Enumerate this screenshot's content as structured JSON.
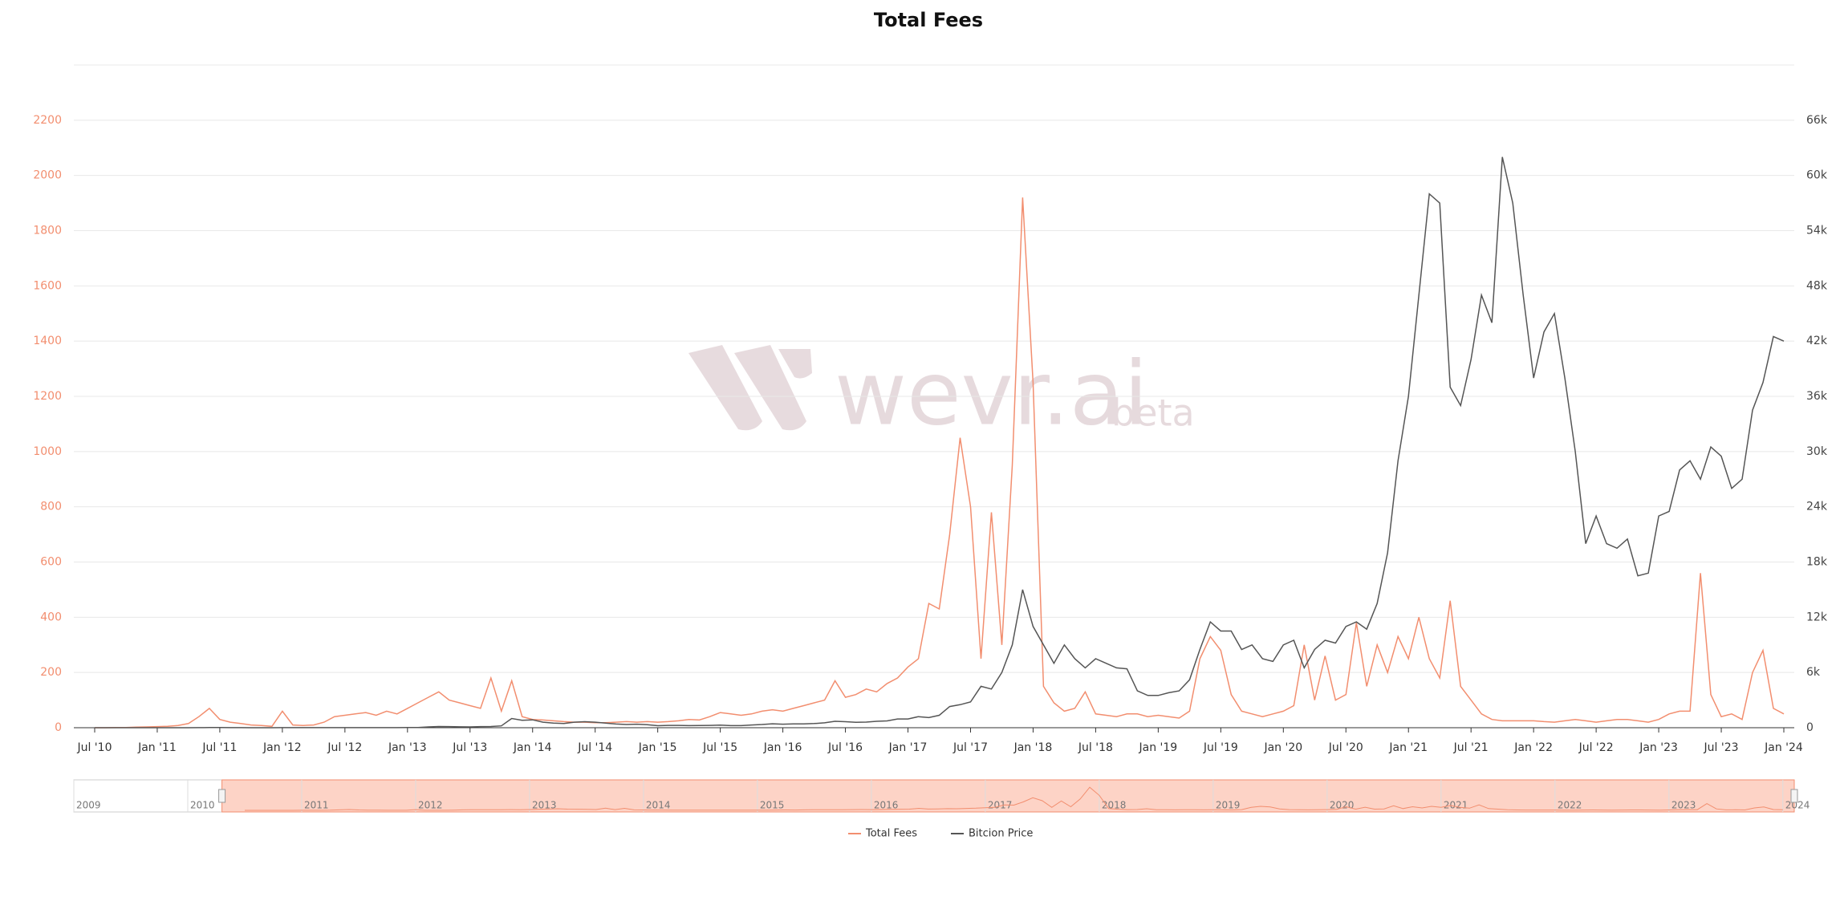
{
  "chart_data": {
    "type": "line",
    "title": "Total Fees",
    "x": [
      "2010-07",
      "2010-08",
      "2010-09",
      "2010-10",
      "2010-11",
      "2010-12",
      "2011-01",
      "2011-02",
      "2011-03",
      "2011-04",
      "2011-05",
      "2011-06",
      "2011-07",
      "2011-08",
      "2011-09",
      "2011-10",
      "2011-11",
      "2011-12",
      "2012-01",
      "2012-02",
      "2012-03",
      "2012-04",
      "2012-05",
      "2012-06",
      "2012-07",
      "2012-08",
      "2012-09",
      "2012-10",
      "2012-11",
      "2012-12",
      "2013-01",
      "2013-02",
      "2013-03",
      "2013-04",
      "2013-05",
      "2013-06",
      "2013-07",
      "2013-08",
      "2013-09",
      "2013-10",
      "2013-11",
      "2013-12",
      "2014-01",
      "2014-02",
      "2014-03",
      "2014-04",
      "2014-05",
      "2014-06",
      "2014-07",
      "2014-08",
      "2014-09",
      "2014-10",
      "2014-11",
      "2014-12",
      "2015-01",
      "2015-02",
      "2015-03",
      "2015-04",
      "2015-05",
      "2015-06",
      "2015-07",
      "2015-08",
      "2015-09",
      "2015-10",
      "2015-11",
      "2015-12",
      "2016-01",
      "2016-02",
      "2016-03",
      "2016-04",
      "2016-05",
      "2016-06",
      "2016-07",
      "2016-08",
      "2016-09",
      "2016-10",
      "2016-11",
      "2016-12",
      "2017-01",
      "2017-02",
      "2017-03",
      "2017-04",
      "2017-05",
      "2017-06",
      "2017-07",
      "2017-08",
      "2017-09",
      "2017-10",
      "2017-11",
      "2017-12",
      "2018-01",
      "2018-02",
      "2018-03",
      "2018-04",
      "2018-05",
      "2018-06",
      "2018-07",
      "2018-08",
      "2018-09",
      "2018-10",
      "2018-11",
      "2018-12",
      "2019-01",
      "2019-02",
      "2019-03",
      "2019-04",
      "2019-05",
      "2019-06",
      "2019-07",
      "2019-08",
      "2019-09",
      "2019-10",
      "2019-11",
      "2019-12",
      "2020-01",
      "2020-02",
      "2020-03",
      "2020-04",
      "2020-05",
      "2020-06",
      "2020-07",
      "2020-08",
      "2020-09",
      "2020-10",
      "2020-11",
      "2020-12",
      "2021-01",
      "2021-02",
      "2021-03",
      "2021-04",
      "2021-05",
      "2021-06",
      "2021-07",
      "2021-08",
      "2021-09",
      "2021-10",
      "2021-11",
      "2021-12",
      "2022-01",
      "2022-02",
      "2022-03",
      "2022-04",
      "2022-05",
      "2022-06",
      "2022-07",
      "2022-08",
      "2022-09",
      "2022-10",
      "2022-11",
      "2022-12",
      "2023-01",
      "2023-02",
      "2023-03",
      "2023-04",
      "2023-05",
      "2023-06",
      "2023-07",
      "2023-08",
      "2023-09",
      "2023-10",
      "2023-11",
      "2023-12",
      "2024-01"
    ],
    "series": [
      {
        "name": "Total Fees",
        "color": "#f28e6f",
        "values": [
          0,
          0,
          1,
          1,
          2,
          3,
          4,
          5,
          8,
          15,
          40,
          70,
          30,
          20,
          15,
          10,
          8,
          5,
          60,
          10,
          8,
          10,
          20,
          40,
          45,
          50,
          55,
          45,
          60,
          50,
          70,
          90,
          110,
          130,
          100,
          90,
          80,
          70,
          180,
          60,
          170,
          40,
          30,
          28,
          25,
          22,
          20,
          20,
          18,
          18,
          20,
          22,
          20,
          22,
          20,
          22,
          25,
          30,
          28,
          40,
          55,
          50,
          45,
          50,
          60,
          65,
          60,
          70,
          80,
          90,
          100,
          170,
          110,
          120,
          140,
          130,
          160,
          180,
          220,
          250,
          450,
          430,
          700,
          1050,
          800,
          250,
          780,
          300,
          950,
          1920,
          1250,
          150,
          90,
          60,
          70,
          130,
          50,
          45,
          40,
          50,
          50,
          40,
          45,
          40,
          35,
          60,
          250,
          330,
          280,
          120,
          60,
          50,
          40,
          50,
          60,
          80,
          300,
          100,
          260,
          100,
          120,
          380,
          150,
          300,
          200,
          330,
          250,
          400,
          250,
          180,
          460,
          150,
          100,
          50,
          30,
          25,
          25,
          25,
          25,
          22,
          20,
          25,
          30,
          25,
          20,
          25,
          30,
          30,
          25,
          20,
          30,
          50,
          60,
          60,
          560,
          120,
          40,
          50,
          30,
          200,
          280,
          70,
          50
        ]
      },
      {
        "name": "Bitcion Price",
        "color": "#555555",
        "axis": "y2",
        "values": [
          0.07,
          0.06,
          0.06,
          0.1,
          0.2,
          0.25,
          0.4,
          0.9,
          0.8,
          1.5,
          7,
          17,
          14,
          10,
          5,
          3.5,
          2.5,
          3.5,
          6,
          5,
          5,
          5,
          5,
          6,
          9,
          10,
          12,
          11,
          11,
          13,
          20,
          30,
          90,
          130,
          120,
          100,
          90,
          120,
          130,
          200,
          1000,
          800,
          850,
          600,
          500,
          450,
          600,
          650,
          600,
          500,
          400,
          350,
          380,
          320,
          220,
          250,
          250,
          230,
          240,
          250,
          280,
          230,
          230,
          300,
          350,
          430,
          380,
          420,
          410,
          450,
          530,
          700,
          650,
          580,
          610,
          700,
          740,
          950,
          950,
          1200,
          1100,
          1350,
          2300,
          2500,
          2800,
          4500,
          4200,
          6000,
          9000,
          15000,
          11000,
          9000,
          7000,
          9000,
          7500,
          6500,
          7500,
          7000,
          6500,
          6400,
          4000,
          3500,
          3500,
          3800,
          4000,
          5200,
          8500,
          11500,
          10500,
          10500,
          8500,
          9000,
          7500,
          7200,
          9000,
          9500,
          6500,
          8500,
          9500,
          9200,
          11000,
          11500,
          10700,
          13500,
          19000,
          29000,
          36000,
          47000,
          58000,
          57000,
          37000,
          35000,
          40000,
          47000,
          44000,
          62000,
          57000,
          47000,
          38000,
          43000,
          45000,
          38000,
          30000,
          20000,
          23000,
          20000,
          19500,
          20500,
          16500,
          16800,
          23000,
          23500,
          28000,
          29000,
          27000,
          30500,
          29500,
          26000,
          27000,
          34500,
          37500,
          42500,
          42000
        ]
      }
    ],
    "xlim": [
      "2010-05",
      "2024-02"
    ],
    "xticks": [
      {
        "value": "2010-07",
        "label": "Jul '10"
      },
      {
        "value": "2011-01",
        "label": "Jan '11"
      },
      {
        "value": "2011-07",
        "label": "Jul '11"
      },
      {
        "value": "2012-01",
        "label": "Jan '12"
      },
      {
        "value": "2012-07",
        "label": "Jul '12"
      },
      {
        "value": "2013-01",
        "label": "Jan '13"
      },
      {
        "value": "2013-07",
        "label": "Jul '13"
      },
      {
        "value": "2014-01",
        "label": "Jan '14"
      },
      {
        "value": "2014-07",
        "label": "Jul '14"
      },
      {
        "value": "2015-01",
        "label": "Jan '15"
      },
      {
        "value": "2015-07",
        "label": "Jul '15"
      },
      {
        "value": "2016-01",
        "label": "Jan '16"
      },
      {
        "value": "2016-07",
        "label": "Jul '16"
      },
      {
        "value": "2017-01",
        "label": "Jan '17"
      },
      {
        "value": "2017-07",
        "label": "Jul '17"
      },
      {
        "value": "2018-01",
        "label": "Jan '18"
      },
      {
        "value": "2018-07",
        "label": "Jul '18"
      },
      {
        "value": "2019-01",
        "label": "Jan '19"
      },
      {
        "value": "2019-07",
        "label": "Jul '19"
      },
      {
        "value": "2020-01",
        "label": "Jan '20"
      },
      {
        "value": "2020-07",
        "label": "Jul '20"
      },
      {
        "value": "2021-01",
        "label": "Jan '21"
      },
      {
        "value": "2021-07",
        "label": "Jul '21"
      },
      {
        "value": "2022-01",
        "label": "Jan '22"
      },
      {
        "value": "2022-07",
        "label": "Jul '22"
      },
      {
        "value": "2023-01",
        "label": "Jan '23"
      },
      {
        "value": "2023-07",
        "label": "Jul '23"
      },
      {
        "value": "2024-01",
        "label": "Jan '24"
      }
    ],
    "ylim": [
      0,
      2400
    ],
    "yticks": [
      0,
      200,
      400,
      600,
      800,
      1000,
      1200,
      1400,
      1600,
      1800,
      2000,
      2200
    ],
    "y2lim": [
      0,
      72000
    ],
    "y2ticks": [
      0,
      {
        "value": 6000,
        "label": "6k"
      },
      {
        "value": 12000,
        "label": "12k"
      },
      {
        "value": 18000,
        "label": "18k"
      },
      {
        "value": 24000,
        "label": "24k"
      },
      {
        "value": 30000,
        "label": "30k"
      },
      {
        "value": 36000,
        "label": "36k"
      },
      {
        "value": 42000,
        "label": "42k"
      },
      {
        "value": 48000,
        "label": "48k"
      },
      {
        "value": 54000,
        "label": "54k"
      },
      {
        "value": 60000,
        "label": "60k"
      },
      {
        "value": 66000,
        "label": "66k"
      }
    ],
    "grid": true,
    "legend": "bottom",
    "watermark": {
      "text": "wevr.ai",
      "suffix": "beta"
    },
    "navigator": {
      "xlim": [
        2009,
        2024.1
      ],
      "selection": [
        2010.3,
        2024.1
      ],
      "ticks": [
        2009,
        2010,
        2011,
        2012,
        2013,
        2014,
        2015,
        2016,
        2017,
        2018,
        2019,
        2020,
        2021,
        2022,
        2023,
        2024
      ]
    }
  }
}
